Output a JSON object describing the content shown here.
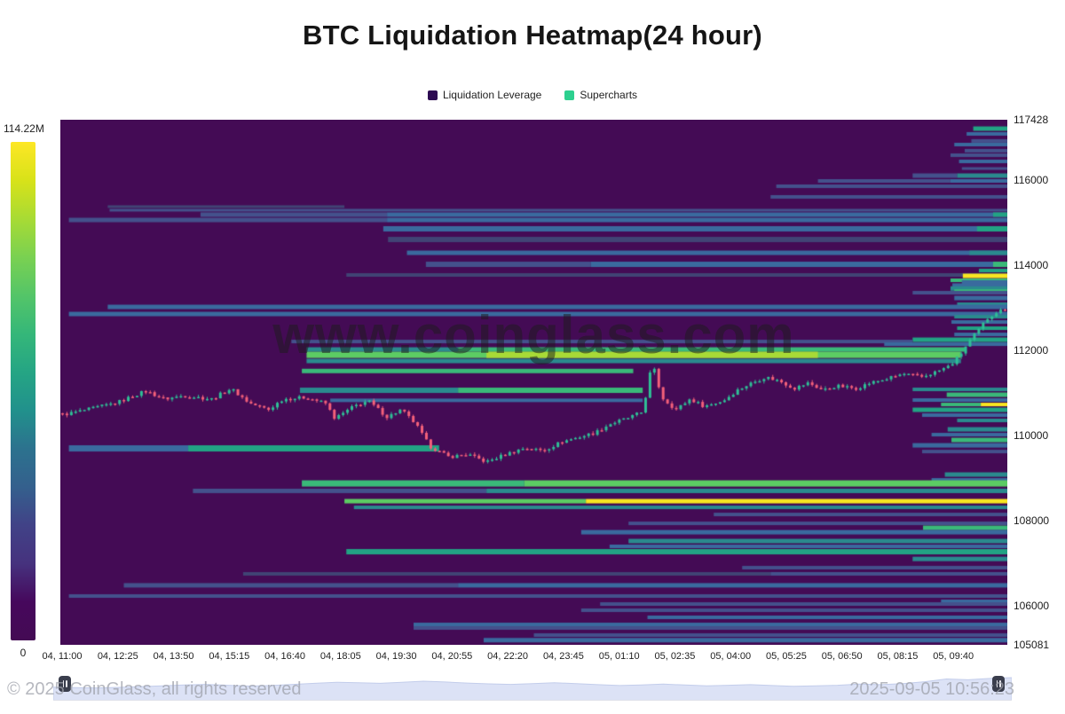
{
  "title": "BTC Liquidation Heatmap(24 hour)",
  "legend": {
    "items": [
      {
        "label": "Liquidation Leverage",
        "color": "#2d0a52"
      },
      {
        "label": "Supercharts",
        "color": "#2dd08f"
      }
    ]
  },
  "colorbar": {
    "max_label": "114.22M",
    "min_label": "0",
    "gradient": [
      "#fde725",
      "#d8e219",
      "#a8db34",
      "#7ad151",
      "#54c568",
      "#35b779",
      "#25a584",
      "#21918c",
      "#2c728e",
      "#34608d",
      "#414287",
      "#46327e",
      "#46085c",
      "#440a54"
    ]
  },
  "watermark": "www.coinglass.com",
  "footer": {
    "copyright": "© 2025 CoinGlass, all rights reserved",
    "timestamp": "2025-09-05 10:56:23"
  },
  "chart_data": {
    "type": "heatmap",
    "title": "BTC Liquidation Heatmap(24 hour)",
    "legend": [
      "Liquidation Leverage",
      "Supercharts"
    ],
    "colorbar_max": "114.22M",
    "colorbar_min": 0,
    "x_labels": [
      "04, 11:00",
      "04, 12:25",
      "04, 13:50",
      "04, 15:15",
      "04, 16:40",
      "04, 18:05",
      "04, 19:30",
      "04, 20:55",
      "04, 22:20",
      "04, 23:45",
      "05, 01:10",
      "05, 02:35",
      "05, 04:00",
      "05, 05:25",
      "05, 06:50",
      "05, 08:15",
      "05, 09:40"
    ],
    "y_axis": {
      "min": 105081,
      "max": 117428,
      "ticks": [
        117428,
        116000,
        114000,
        112000,
        110000,
        108000,
        106000,
        105081
      ]
    },
    "palette": {
      "bg": "#440b55",
      "b0": "#414475",
      "b1": "#44518c",
      "b2": "#3a6a9e",
      "t1": "#2a8a8e",
      "t2": "#22a384",
      "g1": "#3ab979",
      "g2": "#5ccc63",
      "y1": "#a8da36",
      "y2": "#f8e621"
    },
    "candle_up_color": "#2fbf96",
    "candle_down_color": "#f4607a",
    "bands": [
      [
        117219,
        5,
        0.964,
        1,
        "t2"
      ],
      [
        117095,
        4,
        0.957,
        1,
        "b2"
      ],
      [
        116930,
        4,
        0.962,
        1,
        "b1"
      ],
      [
        116844,
        4,
        0.944,
        1,
        "b2"
      ],
      [
        116700,
        4,
        0.955,
        1,
        "b1"
      ],
      [
        116594,
        4,
        0.94,
        1,
        "b1"
      ],
      [
        116448,
        4,
        0.949,
        1,
        "b2"
      ],
      [
        116281,
        3,
        0.952,
        1,
        "b1"
      ],
      [
        116114,
        5,
        0.9,
        0.947,
        "b1"
      ],
      [
        116114,
        5,
        0.947,
        1,
        "t1"
      ],
      [
        115989,
        4,
        0.8,
        0.94,
        "b1"
      ],
      [
        115989,
        4,
        0.94,
        1,
        "b2"
      ],
      [
        115864,
        4,
        0.756,
        1,
        "b1"
      ],
      [
        115614,
        4,
        0.75,
        1,
        "b1"
      ],
      [
        115385,
        3,
        0.05,
        0.3,
        "b0"
      ],
      [
        115301,
        3,
        0.052,
        1,
        "b1"
      ],
      [
        115197,
        5,
        0.148,
        0.345,
        "b1"
      ],
      [
        115197,
        5,
        0.345,
        1,
        "b2"
      ],
      [
        115197,
        5,
        0.985,
        1,
        "t2"
      ],
      [
        115071,
        5,
        0.009,
        0.345,
        "b1"
      ],
      [
        115071,
        5,
        0.345,
        1,
        "b2"
      ],
      [
        114863,
        6,
        0.341,
        1,
        "b2"
      ],
      [
        114863,
        6,
        0.968,
        1,
        "t2"
      ],
      [
        114612,
        6,
        0.346,
        1,
        "b0"
      ],
      [
        114299,
        5,
        0.366,
        1,
        "b2"
      ],
      [
        114299,
        5,
        0.96,
        1,
        "t1"
      ],
      [
        114028,
        6,
        0.386,
        0.56,
        "b1"
      ],
      [
        114028,
        6,
        0.56,
        1,
        "b2"
      ],
      [
        114028,
        6,
        0.985,
        1,
        "g1"
      ],
      [
        113882,
        4,
        0.97,
        1,
        "t2"
      ],
      [
        113778,
        4,
        0.302,
        1,
        "b0"
      ],
      [
        113757,
        5,
        0.953,
        1,
        "y2"
      ],
      [
        113653,
        4,
        0.94,
        1,
        "g1"
      ],
      [
        113611,
        4,
        0.952,
        1,
        "b2"
      ],
      [
        113540,
        4,
        0.942,
        1,
        "b2"
      ],
      [
        113460,
        5,
        0.94,
        1,
        "t1"
      ],
      [
        113399,
        4,
        0.944,
        1,
        "g1"
      ],
      [
        113361,
        4,
        0.9,
        1,
        "b1"
      ],
      [
        113236,
        5,
        0.944,
        1,
        "b2"
      ],
      [
        113090,
        4,
        0.947,
        1,
        "t1"
      ],
      [
        113027,
        5,
        0.05,
        1,
        "b2"
      ],
      [
        112860,
        5,
        0.009,
        1,
        "b2"
      ],
      [
        112797,
        4,
        0.944,
        1,
        "t1"
      ],
      [
        112672,
        4,
        0.941,
        1,
        "b2"
      ],
      [
        112526,
        4,
        0.947,
        1,
        "t2"
      ],
      [
        112380,
        4,
        0.944,
        1,
        "b2"
      ],
      [
        112255,
        5,
        0.9,
        1,
        "t2"
      ],
      [
        112213,
        4,
        0.244,
        0.9,
        "b1"
      ],
      [
        112150,
        4,
        0.87,
        1,
        "b2"
      ],
      [
        112026,
        5,
        0.26,
        0.42,
        "t1"
      ],
      [
        112026,
        5,
        0.42,
        0.955,
        "g1"
      ],
      [
        111900,
        7,
        0.26,
        0.951,
        "g2"
      ],
      [
        111900,
        7,
        0.45,
        0.8,
        "y1"
      ],
      [
        111755,
        5,
        0.26,
        0.951,
        "t1"
      ],
      [
        111520,
        5,
        0.255,
        0.605,
        "g1"
      ],
      [
        111066,
        6,
        0.253,
        0.42,
        "t1"
      ],
      [
        111066,
        6,
        0.42,
        0.615,
        "g1"
      ],
      [
        110830,
        4,
        0.285,
        0.615,
        "b2"
      ],
      [
        109700,
        7,
        0.009,
        0.135,
        "b2"
      ],
      [
        109700,
        7,
        0.135,
        0.4,
        "t2"
      ],
      [
        111087,
        4,
        0.9,
        1,
        "t1"
      ],
      [
        110962,
        5,
        0.936,
        1,
        "g1"
      ],
      [
        110837,
        4,
        0.9,
        1,
        "b2"
      ],
      [
        110732,
        4,
        0.93,
        0.972,
        "g1"
      ],
      [
        110732,
        4,
        0.972,
        1,
        "y2"
      ],
      [
        110607,
        5,
        0.9,
        1,
        "t2"
      ],
      [
        110482,
        4,
        0.91,
        1,
        "b2"
      ],
      [
        110357,
        4,
        0.947,
        1,
        "t1"
      ],
      [
        110148,
        5,
        0.937,
        1,
        "t1"
      ],
      [
        110023,
        4,
        0.92,
        1,
        "b2"
      ],
      [
        109898,
        5,
        0.941,
        1,
        "g1"
      ],
      [
        109772,
        5,
        0.9,
        1,
        "b2"
      ],
      [
        109626,
        4,
        0.91,
        1,
        "b1"
      ],
      [
        109085,
        5,
        0.934,
        1,
        "t1"
      ],
      [
        108960,
        4,
        0.92,
        1,
        "b2"
      ],
      [
        108876,
        7,
        0.255,
        0.49,
        "g1"
      ],
      [
        108876,
        7,
        0.49,
        1,
        "g2"
      ],
      [
        108700,
        5,
        0.14,
        0.45,
        "b1"
      ],
      [
        108700,
        5,
        0.45,
        1,
        "t1"
      ],
      [
        108459,
        5,
        0.3,
        0.555,
        "g2"
      ],
      [
        108459,
        5,
        0.555,
        1,
        "y2"
      ],
      [
        108313,
        4,
        0.31,
        1,
        "t1"
      ],
      [
        108146,
        4,
        0.69,
        1,
        "b1"
      ],
      [
        107937,
        4,
        0.6,
        1,
        "b1"
      ],
      [
        107833,
        5,
        0.911,
        1,
        "g1"
      ],
      [
        107729,
        5,
        0.55,
        1,
        "b2"
      ],
      [
        107521,
        5,
        0.6,
        1,
        "t1"
      ],
      [
        107396,
        4,
        0.58,
        1,
        "b2"
      ],
      [
        107270,
        6,
        0.302,
        1,
        "t2"
      ],
      [
        107100,
        5,
        0.9,
        1,
        "t1"
      ],
      [
        106895,
        4,
        0.72,
        1,
        "b1"
      ],
      [
        106750,
        4,
        0.193,
        0.75,
        "b0"
      ],
      [
        106750,
        4,
        0.75,
        1,
        "b1"
      ],
      [
        106480,
        5,
        0.067,
        0.42,
        "b1"
      ],
      [
        106480,
        5,
        0.42,
        1,
        "b2"
      ],
      [
        106228,
        4,
        0.009,
        1,
        "b1"
      ],
      [
        106103,
        4,
        0.93,
        1,
        "b2"
      ],
      [
        106040,
        4,
        0.57,
        1,
        "b1"
      ],
      [
        105894,
        4,
        0.55,
        1,
        "b1"
      ],
      [
        105727,
        4,
        0.62,
        1,
        "b2"
      ],
      [
        105560,
        4,
        0.373,
        1,
        "b2"
      ],
      [
        105477,
        4,
        0.373,
        1,
        "b1"
      ],
      [
        105310,
        4,
        0.5,
        1,
        "b1"
      ],
      [
        105190,
        5,
        0.447,
        1,
        "b2"
      ]
    ],
    "price_path": [
      [
        0.0,
        110480
      ],
      [
        0.03,
        110620
      ],
      [
        0.06,
        110780
      ],
      [
        0.09,
        111050
      ],
      [
        0.11,
        110860
      ],
      [
        0.13,
        110940
      ],
      [
        0.16,
        110860
      ],
      [
        0.18,
        111110
      ],
      [
        0.2,
        110760
      ],
      [
        0.22,
        110610
      ],
      [
        0.235,
        110860
      ],
      [
        0.26,
        110900
      ],
      [
        0.28,
        110760
      ],
      [
        0.29,
        110400
      ],
      [
        0.31,
        110690
      ],
      [
        0.325,
        110820
      ],
      [
        0.345,
        110440
      ],
      [
        0.36,
        110610
      ],
      [
        0.375,
        110280
      ],
      [
        0.39,
        109750
      ],
      [
        0.41,
        109500
      ],
      [
        0.43,
        109560
      ],
      [
        0.45,
        109380
      ],
      [
        0.47,
        109560
      ],
      [
        0.49,
        109710
      ],
      [
        0.51,
        109650
      ],
      [
        0.53,
        109860
      ],
      [
        0.55,
        109980
      ],
      [
        0.565,
        110070
      ],
      [
        0.58,
        110270
      ],
      [
        0.6,
        110420
      ],
      [
        0.615,
        110560
      ],
      [
        0.625,
        111730
      ],
      [
        0.635,
        110900
      ],
      [
        0.65,
        110610
      ],
      [
        0.665,
        110860
      ],
      [
        0.68,
        110690
      ],
      [
        0.7,
        110820
      ],
      [
        0.715,
        111070
      ],
      [
        0.73,
        111240
      ],
      [
        0.745,
        111380
      ],
      [
        0.76,
        111280
      ],
      [
        0.775,
        111110
      ],
      [
        0.79,
        111240
      ],
      [
        0.805,
        111070
      ],
      [
        0.82,
        111170
      ],
      [
        0.84,
        111110
      ],
      [
        0.855,
        111240
      ],
      [
        0.87,
        111320
      ],
      [
        0.89,
        111450
      ],
      [
        0.91,
        111380
      ],
      [
        0.928,
        111530
      ],
      [
        0.94,
        111650
      ],
      [
        0.95,
        111900
      ],
      [
        0.96,
        112220
      ],
      [
        0.97,
        112490
      ],
      [
        0.978,
        112740
      ],
      [
        0.988,
        112900
      ],
      [
        1.0,
        113000
      ]
    ],
    "navigator_spark": [
      0.5,
      0.48,
      0.47,
      0.49,
      0.52,
      0.55,
      0.58,
      0.6,
      0.57,
      0.54,
      0.56,
      0.6,
      0.64,
      0.68,
      0.66,
      0.64,
      0.68,
      0.72,
      0.69,
      0.65,
      0.62,
      0.6,
      0.63,
      0.66,
      0.63,
      0.59,
      0.56,
      0.58,
      0.61,
      0.58,
      0.55,
      0.57,
      0.59,
      0.56,
      0.53,
      0.55,
      0.57,
      0.61,
      0.59,
      0.63,
      0.7,
      0.8,
      0.77,
      0.82,
      0.85
    ],
    "navigator_fill": "#dce2f6",
    "navigator_stroke": "#c3cdeb"
  }
}
